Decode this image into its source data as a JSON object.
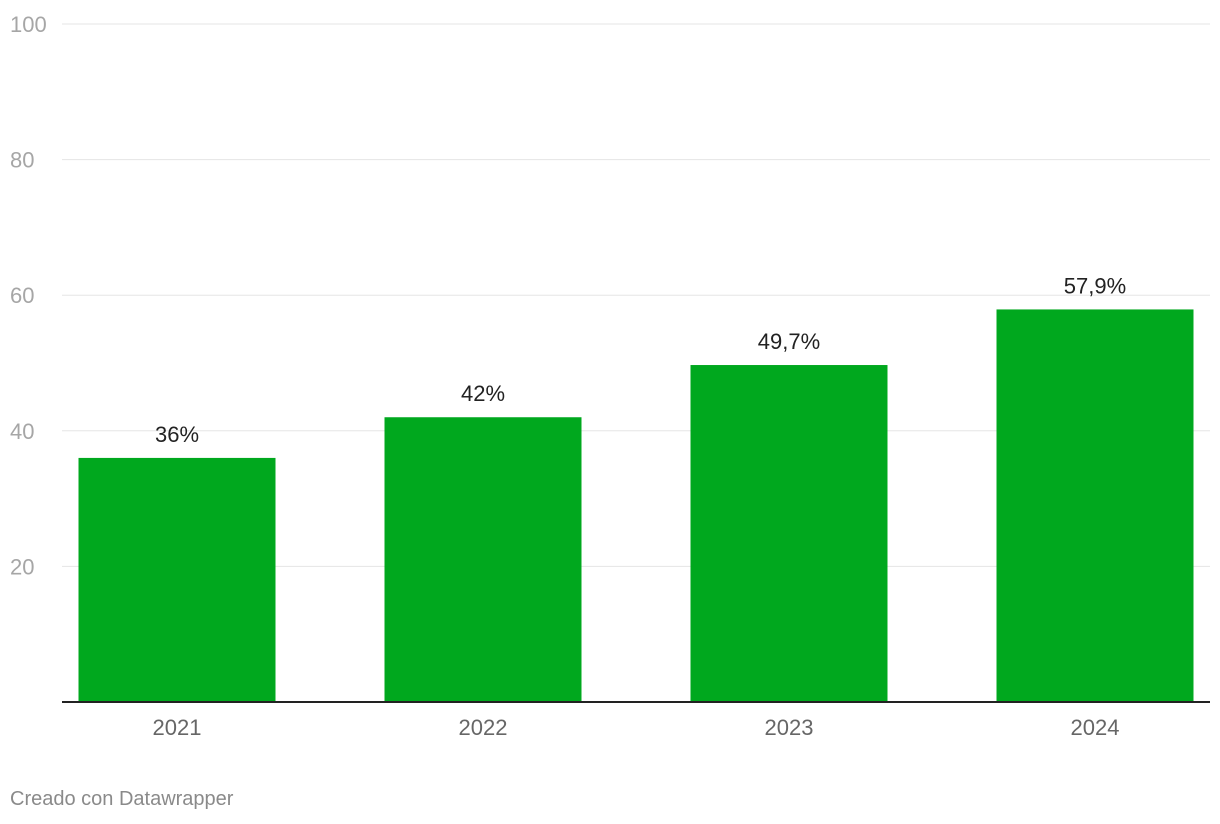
{
  "chart_data": {
    "type": "bar",
    "categories": [
      "2021",
      "2022",
      "2023",
      "2024"
    ],
    "values": [
      36,
      42,
      49.7,
      57.9
    ],
    "value_labels": [
      "36%",
      "42%",
      "49,7%",
      "57,9%"
    ],
    "ylim": [
      0,
      100
    ],
    "yticks": [
      20,
      40,
      60,
      80,
      100
    ],
    "grid": true,
    "bar_color": "#00a81e",
    "title": "",
    "xlabel": "",
    "ylabel": ""
  },
  "footer": {
    "credit": "Creado con Datawrapper"
  }
}
